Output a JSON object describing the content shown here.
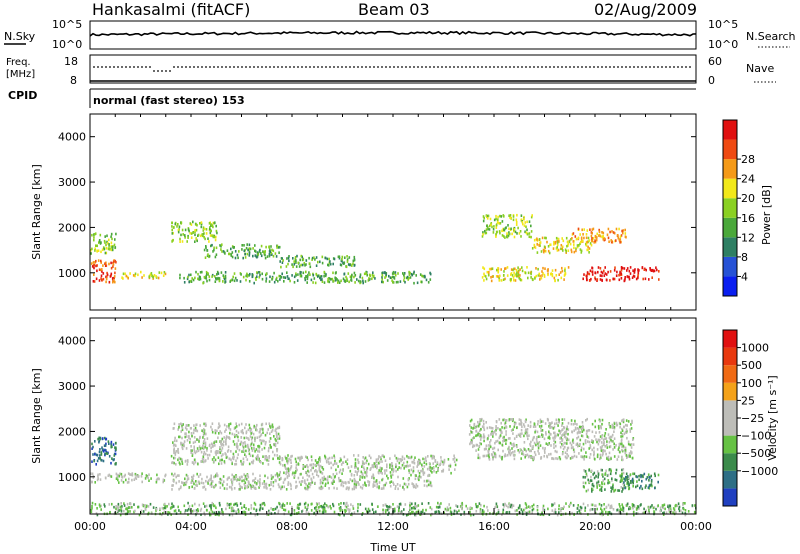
{
  "header": {
    "station": "Hankasalmi (fitACF)",
    "beam": "Beam 03",
    "date": "02/Aug/2009"
  },
  "noise_panel": {
    "left_label": "N.Sky",
    "right_label": "N.Search",
    "left_ticks": [
      "10^5",
      "10^0"
    ],
    "right_ticks": [
      "10^5",
      "10^0"
    ]
  },
  "freq_panel": {
    "left_label_1": "Freq.",
    "left_label_2": "[MHz]",
    "left_ticks": [
      "18",
      "8"
    ],
    "right_label": "Nave",
    "right_ticks": [
      "60",
      "0"
    ]
  },
  "cpid_panel": {
    "label": "CPID",
    "mode": "normal (fast stereo) 153"
  },
  "chart_data": [
    {
      "type": "heatmap",
      "ylabel": "Slant Range [km]",
      "ylim": [
        180,
        4500
      ],
      "yticks": [
        "1000",
        "2000",
        "3000",
        "4000"
      ],
      "xlim_hours": [
        0,
        24
      ],
      "colorbar": {
        "label": "Power [dB]",
        "ticks": [
          "4",
          "8",
          "12",
          "16",
          "20",
          "24",
          "28"
        ],
        "colors": [
          "#0a1ff0",
          "#2652d6",
          "#2e7f63",
          "#4aa83a",
          "#8ad022",
          "#f2e81a",
          "#f59a18",
          "#ef4a12",
          "#e01010"
        ]
      },
      "echo_bands": [
        {
          "t0": 0.0,
          "t1": 1.0,
          "r0": 800,
          "r1": 1300,
          "level": 7
        },
        {
          "t0": 0.0,
          "t1": 1.0,
          "r0": 1450,
          "r1": 1900,
          "level": 4
        },
        {
          "t0": 1.2,
          "t1": 3.0,
          "r0": 900,
          "r1": 1050,
          "level": 5
        },
        {
          "t0": 3.2,
          "t1": 5.0,
          "r0": 1700,
          "r1": 2150,
          "level": 4
        },
        {
          "t0": 4.5,
          "t1": 7.5,
          "r0": 1350,
          "r1": 1650,
          "level": 3
        },
        {
          "t0": 7.5,
          "t1": 10.5,
          "r0": 1150,
          "r1": 1400,
          "level": 3
        },
        {
          "t0": 3.5,
          "t1": 13.5,
          "r0": 800,
          "r1": 1050,
          "level": 3
        },
        {
          "t0": 15.5,
          "t1": 17.5,
          "r0": 1800,
          "r1": 2300,
          "level": 4
        },
        {
          "t0": 17.5,
          "t1": 20.0,
          "r0": 1450,
          "r1": 1800,
          "level": 5
        },
        {
          "t0": 19.0,
          "t1": 21.2,
          "r0": 1700,
          "r1": 2000,
          "level": 6
        },
        {
          "t0": 15.5,
          "t1": 19.0,
          "r0": 850,
          "r1": 1150,
          "level": 5
        },
        {
          "t0": 19.5,
          "t1": 22.5,
          "r0": 850,
          "r1": 1150,
          "level": 8
        }
      ]
    },
    {
      "type": "heatmap",
      "ylabel": "Slant Range [km]",
      "xlabel": "Time UT",
      "ylim": [
        180,
        4500
      ],
      "yticks": [
        "1000",
        "2000",
        "3000",
        "4000"
      ],
      "xticks": [
        "00:00",
        "04:00",
        "08:00",
        "12:00",
        "16:00",
        "20:00",
        "00:00"
      ],
      "xlim_hours": [
        0,
        24
      ],
      "colorbar": {
        "label": "Velocity [m s⁻¹]",
        "ticks": [
          "1000",
          "500",
          "100",
          "25",
          "−25",
          "−100",
          "−500",
          "−1000"
        ],
        "colors": [
          "#2040c0",
          "#2e6f86",
          "#3b8b4b",
          "#66c244",
          "#bdbdb8",
          "#bdbdb8",
          "#f4a21a",
          "#f06a14",
          "#e8380e",
          "#e01010"
        ]
      },
      "echo_bands": [
        {
          "t0": 0.0,
          "t1": 1.0,
          "r0": 1300,
          "r1": 1900,
          "level": 1
        },
        {
          "t0": 0.0,
          "t1": 3.0,
          "r0": 900,
          "r1": 1100,
          "level": 4
        },
        {
          "t0": 3.2,
          "t1": 13.5,
          "r0": 750,
          "r1": 1100,
          "level": 4
        },
        {
          "t0": 3.2,
          "t1": 7.5,
          "r0": 1300,
          "r1": 2200,
          "level": 4
        },
        {
          "t0": 7.5,
          "t1": 14.5,
          "r0": 1100,
          "r1": 1500,
          "level": 4
        },
        {
          "t0": 15.0,
          "t1": 21.5,
          "r0": 1400,
          "r1": 2300,
          "level": 4
        },
        {
          "t0": 19.5,
          "t1": 21.5,
          "r0": 700,
          "r1": 1200,
          "level": 3
        },
        {
          "t0": 21.0,
          "t1": 22.5,
          "r0": 750,
          "r1": 1100,
          "level": 2
        },
        {
          "t0": 0.0,
          "t1": 24.0,
          "r0": 180,
          "r1": 450,
          "level": 3
        }
      ]
    }
  ]
}
